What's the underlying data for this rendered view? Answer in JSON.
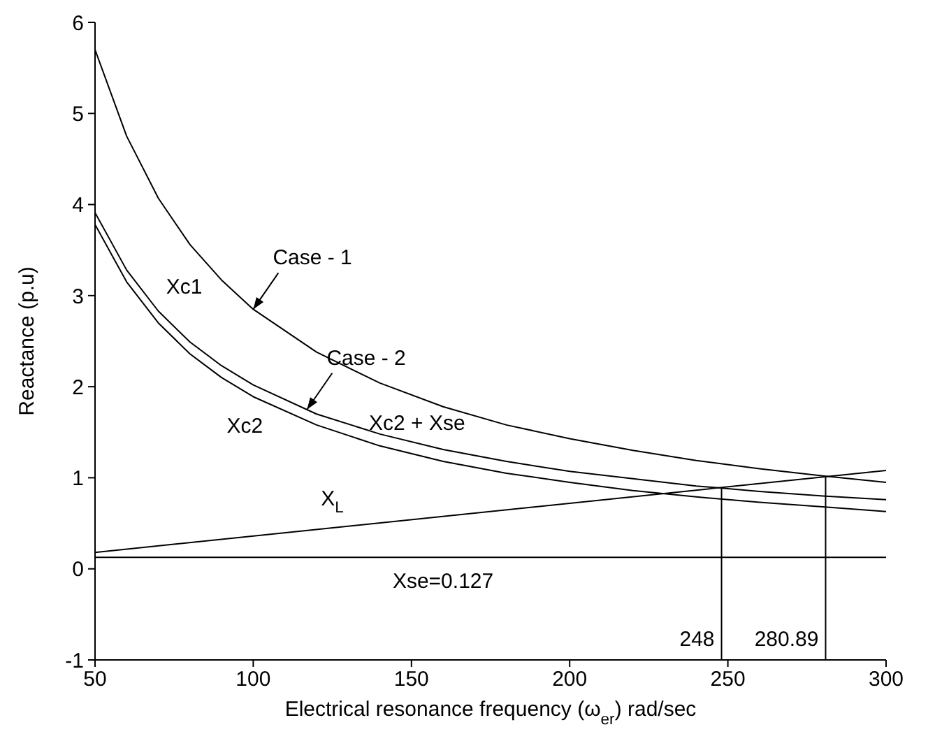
{
  "chart_data": {
    "type": "line",
    "xlabel": "Electrical resonance frequency (ω$_{er}$) rad/sec",
    "ylabel": "Reactance (p.u)",
    "xlim": [
      50,
      300
    ],
    "xticks": [
      50,
      100,
      150,
      200,
      250,
      300
    ],
    "ylim": [
      -1,
      6
    ],
    "yticks": [
      -1,
      0,
      1,
      2,
      3,
      4,
      5,
      6
    ],
    "grid": false,
    "legend": false,
    "marker": "none",
    "line_style": "solid",
    "series": [
      {
        "color": "#000000",
        "x": [
          50,
          60,
          70,
          80,
          90,
          100,
          120,
          140,
          160,
          180,
          200,
          220,
          240,
          260,
          280,
          300
        ],
        "values": [
          5.7,
          4.75,
          4.07,
          3.56,
          3.17,
          2.85,
          2.38,
          2.04,
          1.78,
          1.58,
          1.43,
          1.3,
          1.19,
          1.1,
          1.02,
          0.95
        ]
      },
      {
        "color": "#000000",
        "x": [
          50,
          60,
          70,
          80,
          90,
          100,
          120,
          140,
          160,
          180,
          200,
          220,
          240,
          260,
          280,
          300
        ],
        "values": [
          3.91,
          3.28,
          2.83,
          2.49,
          2.23,
          2.02,
          1.7,
          1.48,
          1.31,
          1.18,
          1.07,
          0.99,
          0.91,
          0.85,
          0.8,
          0.76
        ]
      },
      {
        "color": "#000000",
        "x": [
          50,
          60,
          70,
          80,
          90,
          100,
          120,
          140,
          160,
          180,
          200,
          220,
          240,
          260,
          280,
          300
        ],
        "values": [
          3.78,
          3.15,
          2.7,
          2.36,
          2.1,
          1.89,
          1.58,
          1.35,
          1.18,
          1.05,
          0.95,
          0.86,
          0.79,
          0.73,
          0.68,
          0.63
        ]
      },
      {
        "color": "#000000",
        "x": [
          50,
          300
        ],
        "values": [
          0.18,
          1.08
        ]
      },
      {
        "color": "#000000",
        "x": [
          248,
          248
        ],
        "values": [
          -1,
          0.89
        ]
      },
      {
        "color": "#000000",
        "x": [
          280.89,
          280.89
        ],
        "values": [
          -1,
          1.01
        ]
      }
    ],
    "ref_lines": [
      {
        "axis": "y",
        "value": 0.127,
        "label": "Xse=0.127",
        "color": "#000000"
      }
    ],
    "annotations": [
      {
        "text": "Xc1",
        "x": 87,
        "y": 3.3
      },
      {
        "text": "Case - 1",
        "x": 100,
        "y": 2.85
      },
      {
        "text": "Case - 2",
        "x": 117,
        "y": 1.75
      },
      {
        "text": "Xc2",
        "x": 100,
        "y": 1.89
      },
      {
        "text": "Xc2 + Xse",
        "x": 150,
        "y": 1.39
      },
      {
        "text": "X$_{L}$",
        "x": 125,
        "y": 0.45
      },
      {
        "text": "248",
        "x": 248,
        "y": -1
      },
      {
        "text": "280.89",
        "x": 280.89,
        "y": -1
      }
    ]
  }
}
